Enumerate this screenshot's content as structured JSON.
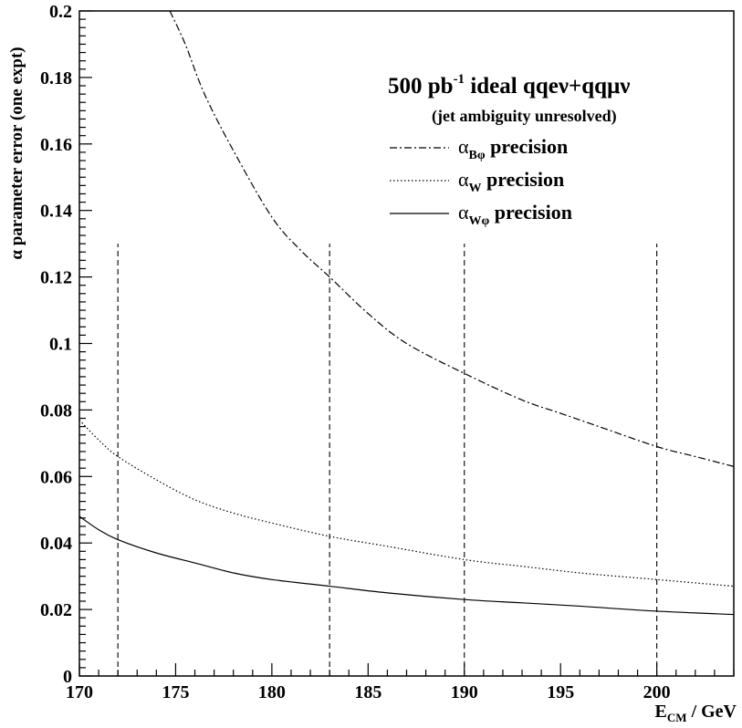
{
  "chart_data": {
    "type": "line",
    "ylabel": "α parameter error (one expt)",
    "xlabel_main": "E",
    "xlabel_sub": "CM",
    "xlabel_rest": " / GeV",
    "xlim": [
      170,
      204
    ],
    "ylim": [
      0,
      0.2
    ],
    "xticks": [
      170,
      175,
      180,
      185,
      190,
      195,
      200
    ],
    "yticks": [
      0,
      0.02,
      0.04,
      0.06,
      0.08,
      0.1,
      0.12,
      0.14,
      0.16,
      0.18,
      0.2
    ],
    "xtick_labels": [
      "170",
      "175",
      "180",
      "185",
      "190",
      "195",
      "200"
    ],
    "ytick_labels": [
      "0",
      "0.02",
      "0.04",
      "0.06",
      "0.08",
      "0.1",
      "0.12",
      "0.14",
      "0.16",
      "0.18",
      "0.2"
    ],
    "grid": false,
    "legend": {
      "title_part1": "500 pb",
      "title_sup": "-1",
      "title_part2": " ideal qqeν+qqμν",
      "subtitle": "(jet ambiguity unresolved)",
      "placement": "top-right"
    },
    "vertical_lines": {
      "x": [
        172,
        183,
        190,
        200
      ],
      "y_top": 0.13
    },
    "series": [
      {
        "key": "bphi",
        "name_base": "α",
        "name_sub": "Bφ",
        "name_rest": " precision",
        "style": "dash-dot",
        "x": [
          174.7,
          175.5,
          176.5,
          178,
          180,
          181.5,
          183,
          185,
          187,
          190,
          193,
          195,
          197,
          200,
          202,
          204
        ],
        "y": [
          0.2,
          0.19,
          0.175,
          0.158,
          0.138,
          0.128,
          0.12,
          0.109,
          0.1,
          0.091,
          0.083,
          0.079,
          0.075,
          0.069,
          0.066,
          0.063
        ]
      },
      {
        "key": "w",
        "name_base": "α",
        "name_sub": "W",
        "name_rest": " precision",
        "style": "dotted",
        "x": [
          170,
          171,
          172,
          174,
          176,
          178,
          180,
          183,
          186,
          190,
          193,
          196,
          200,
          204
        ],
        "y": [
          0.077,
          0.071,
          0.066,
          0.059,
          0.053,
          0.049,
          0.046,
          0.042,
          0.039,
          0.035,
          0.033,
          0.031,
          0.029,
          0.027
        ]
      },
      {
        "key": "wphi",
        "name_base": "α",
        "name_sub": "Wφ",
        "name_rest": " precision",
        "style": "solid",
        "x": [
          170,
          171,
          172,
          174,
          176,
          178,
          180,
          183,
          186,
          190,
          193,
          196,
          200,
          204
        ],
        "y": [
          0.048,
          0.044,
          0.041,
          0.037,
          0.034,
          0.031,
          0.029,
          0.027,
          0.025,
          0.023,
          0.022,
          0.021,
          0.0195,
          0.0185
        ]
      }
    ]
  }
}
